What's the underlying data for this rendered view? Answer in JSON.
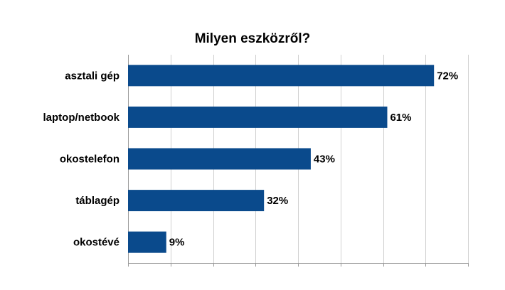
{
  "chart_data": {
    "type": "bar",
    "orientation": "horizontal",
    "title": "Milyen eszközről?",
    "categories": [
      "asztali gép",
      "laptop/netbook",
      "okostelefon",
      "táblagép",
      "okostévé"
    ],
    "values": [
      72,
      61,
      43,
      32,
      9
    ],
    "data_labels": [
      "72%",
      "61%",
      "43%",
      "32%",
      "9%"
    ],
    "xlim": [
      0,
      80
    ],
    "x_grid_step": 10,
    "grid": true,
    "legend": "none",
    "bar_color": "#0a4a8c"
  }
}
